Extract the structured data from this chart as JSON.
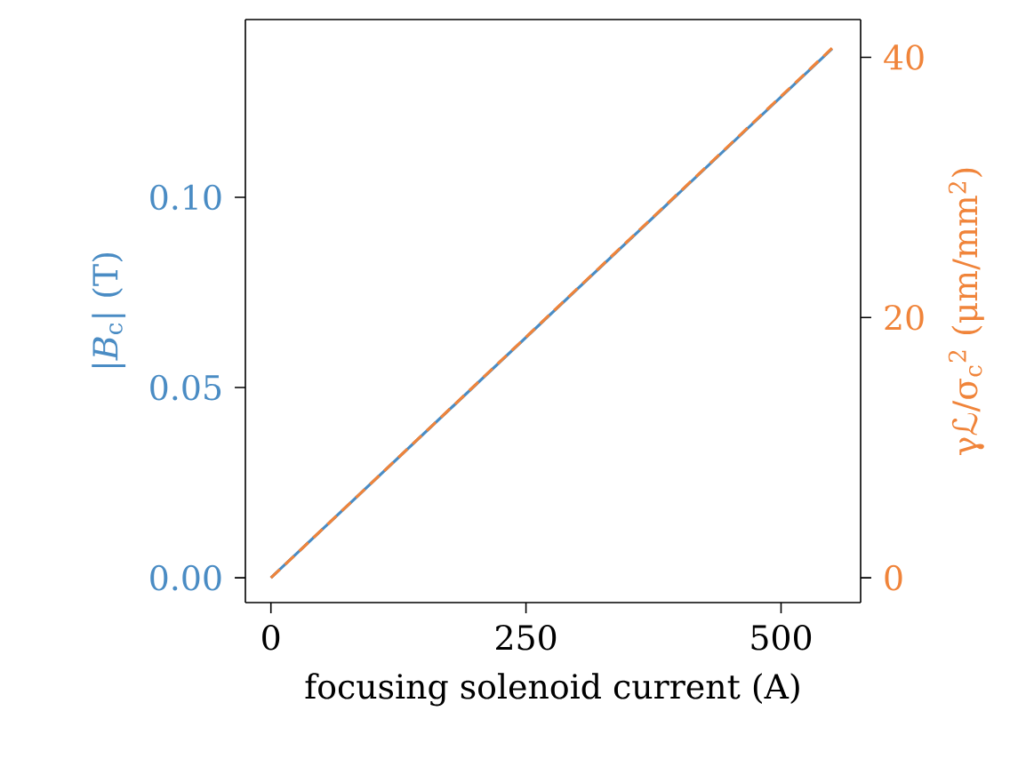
{
  "chart_data": {
    "type": "line",
    "xlabel": "focusing solenoid current (A)",
    "ylabel": "|*B*$_{c}$| (T)",
    "y2label": "γℒ/σ$_{c}$$^{2}$ (μm/mm$^{2}$)",
    "x": [
      0,
      550
    ],
    "series": [
      {
        "color": "#4a8cc4",
        "values": [
          0,
          0.139
        ],
        "line_style": "solid"
      },
      {
        "color": "#f0843a",
        "values": [
          0,
          40.7
        ],
        "axis": "y2",
        "line_style": "dashed"
      }
    ],
    "xlim": [
      -25,
      578
    ],
    "xticks": [
      0,
      250,
      500
    ],
    "ylim": [
      -0.0065,
      0.1467
    ],
    "yticks": [
      {
        "value": 0,
        "label": "0.00"
      },
      {
        "value": 0.05,
        "label": "0.05"
      },
      {
        "value": 0.1,
        "label": "0.10"
      }
    ],
    "y2lim": [
      -1.9,
      42.9
    ],
    "y2ticks": [
      0,
      20,
      40
    ],
    "grid": false,
    "legend": false,
    "marker": "none"
  }
}
